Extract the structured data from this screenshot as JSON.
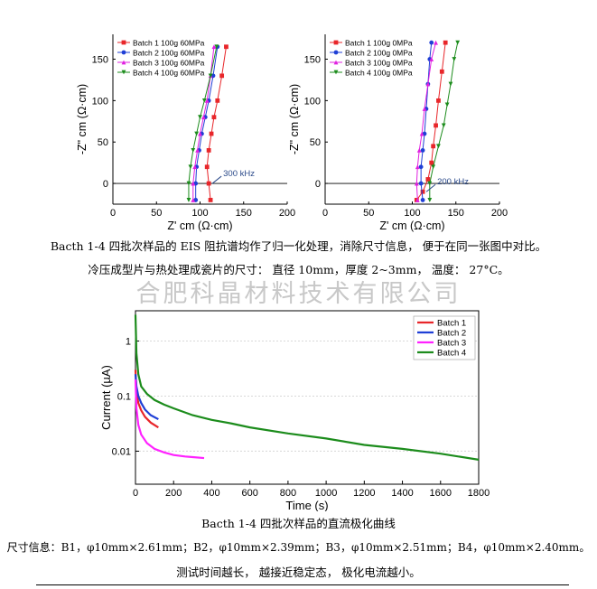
{
  "charts": {
    "eis_left": {
      "type": "line",
      "xlabel": "Z' cm (Ω·cm)",
      "ylabel": "-Z\" cm (Ω·cm)",
      "xlim": [
        0,
        200
      ],
      "ylim": [
        -25,
        180
      ],
      "xticks": [
        0,
        50,
        100,
        150,
        200
      ],
      "yticks": [
        0,
        50,
        100,
        150
      ],
      "legend_position": "top-left",
      "annotation": "300 kHz",
      "series": [
        {
          "name": "Batch 1 100g 60MPa",
          "color": "#e8262a",
          "marker": "square",
          "x": [
            112,
            110,
            108,
            110,
            113,
            116,
            120,
            125,
            130
          ],
          "y": [
            -20,
            0,
            20,
            40,
            60,
            80,
            100,
            130,
            165
          ]
        },
        {
          "name": "Batch 2 100g 60MPa",
          "color": "#1f3fd6",
          "marker": "circle",
          "x": [
            95,
            95,
            96,
            99,
            102,
            106,
            110,
            115,
            120
          ],
          "y": [
            -20,
            0,
            20,
            40,
            60,
            80,
            100,
            130,
            165
          ]
        },
        {
          "name": "Batch 3 100g 60MPa",
          "color": "#e020e0",
          "marker": "triangle",
          "x": [
            92,
            92,
            94,
            97,
            100,
            104,
            108,
            112,
            116
          ],
          "y": [
            -20,
            0,
            20,
            40,
            60,
            80,
            100,
            130,
            165
          ]
        },
        {
          "name": "Batch 4 100g 60MPa",
          "color": "#1c8c1c",
          "marker": "triangle-down",
          "x": [
            87,
            87,
            89,
            92,
            96,
            100,
            105,
            112,
            119
          ],
          "y": [
            -20,
            0,
            20,
            40,
            60,
            80,
            100,
            130,
            165
          ]
        }
      ]
    },
    "eis_right": {
      "type": "line",
      "xlabel": "Z' cm (Ω·cm)",
      "ylabel": "-Z\" cm (Ω·cm)",
      "xlim": [
        0,
        200
      ],
      "ylim": [
        -25,
        180
      ],
      "xticks": [
        0,
        50,
        100,
        150,
        200
      ],
      "yticks": [
        0,
        50,
        100,
        150
      ],
      "legend_position": "top-left",
      "annotation": "200 kHz",
      "series": [
        {
          "name": "Batch 1 100g 0MPa",
          "color": "#e8262a",
          "marker": "square",
          "x": [
            105,
            112,
            118,
            122,
            124,
            127,
            130,
            134,
            138
          ],
          "y": [
            -20,
            -10,
            5,
            25,
            45,
            70,
            100,
            135,
            170
          ]
        },
        {
          "name": "Batch 2 100g 0MPa",
          "color": "#1f3fd6",
          "marker": "circle",
          "x": [
            112,
            110,
            110,
            112,
            114,
            116,
            118,
            120,
            122
          ],
          "y": [
            -20,
            0,
            20,
            40,
            60,
            90,
            120,
            150,
            170
          ]
        },
        {
          "name": "Batch 3 100g 0MPa",
          "color": "#e020e0",
          "marker": "triangle",
          "x": [
            106,
            105,
            106,
            108,
            111,
            114,
            118,
            122,
            127
          ],
          "y": [
            -20,
            0,
            20,
            40,
            60,
            90,
            120,
            150,
            170
          ]
        },
        {
          "name": "Batch 4 100g 0MPa",
          "color": "#1c8c1c",
          "marker": "triangle-down",
          "x": [
            120,
            120,
            124,
            130,
            136,
            140,
            144,
            148,
            152
          ],
          "y": [
            -20,
            0,
            20,
            45,
            70,
            95,
            120,
            150,
            170
          ]
        }
      ]
    },
    "polarization": {
      "type": "line",
      "xlabel": "Time (s)",
      "ylabel": "Current (µA)",
      "xlim": [
        0,
        1800
      ],
      "ylim_log10": [
        -2.6,
        0.55
      ],
      "log_scale_y": true,
      "xticks": [
        0,
        200,
        400,
        600,
        800,
        1000,
        1200,
        1400,
        1600,
        1800
      ],
      "ytick_labels": [
        "1",
        "0.1",
        "0.01"
      ],
      "ytick_values": [
        1,
        0.1,
        0.01
      ],
      "legend_position": "top-right",
      "series": [
        {
          "name": "Batch 1",
          "color": "#e8262a",
          "x": [
            0,
            5,
            15,
            30,
            50,
            80,
            120
          ],
          "y": [
            0.3,
            0.12,
            0.075,
            0.055,
            0.042,
            0.033,
            0.027
          ]
        },
        {
          "name": "Batch 2",
          "color": "#1f3fd6",
          "x": [
            0,
            5,
            15,
            30,
            50,
            80,
            120
          ],
          "y": [
            0.25,
            0.15,
            0.1,
            0.075,
            0.057,
            0.045,
            0.038
          ]
        },
        {
          "name": "Batch 3",
          "color": "#ff22ff",
          "x": [
            0,
            5,
            15,
            30,
            60,
            100,
            150,
            200,
            260,
            300,
            360
          ],
          "y": [
            0.2,
            0.06,
            0.03,
            0.02,
            0.014,
            0.011,
            0.0095,
            0.0085,
            0.008,
            0.0078,
            0.0075
          ]
        },
        {
          "name": "Batch 4",
          "color": "#1c8c1c",
          "x": [
            0,
            5,
            15,
            30,
            60,
            100,
            150,
            200,
            300,
            400,
            500,
            600,
            800,
            1000,
            1200,
            1400,
            1600,
            1800
          ],
          "y": [
            3.0,
            0.6,
            0.25,
            0.15,
            0.11,
            0.085,
            0.07,
            0.06,
            0.045,
            0.037,
            0.032,
            0.027,
            0.021,
            0.017,
            0.013,
            0.011,
            0.009,
            0.007
          ]
        }
      ]
    }
  },
  "captions": {
    "eis_line1": "Bacth 1-4 四批次样品的 EIS 阻抗谱均作了归一化处理，消除尺寸信息，  便于在同一张图中对比。",
    "eis_line2": "冷压成型片与热处理成瓷片的尺寸：  直径 10mm，厚度 2~3mm，  温度：  27°C。",
    "watermark": "合肥科晶材料技术有限公司",
    "pol_title": "Bacth 1-4 四批次样品的直流极化曲线",
    "dimensions": "尺寸信息：B1，φ10mm×2.61mm；B2，φ10mm×2.39mm；B3，φ10mm×2.51mm；B4，φ10mm×2.40mm。",
    "conclusion": "测试时间越长，  越接近稳定态，  极化电流越小。"
  }
}
